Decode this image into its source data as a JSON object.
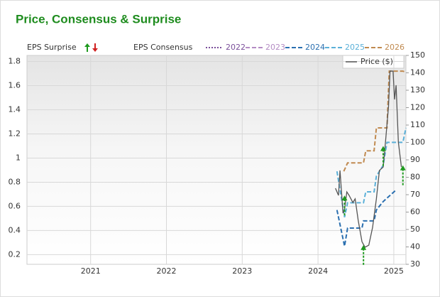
{
  "chart_data": {
    "type": "line",
    "title": "Price, Consensus & Surprise",
    "consensus_label": "EPS Consensus",
    "xlim": [
      2020.16,
      2025.16
    ],
    "xticks": [
      2021,
      2022,
      2023,
      2024,
      2025
    ],
    "ylim": [
      0.12,
      1.85
    ],
    "yticks": [
      0.2,
      0.4,
      0.6,
      0.8,
      1,
      1.2,
      1.4,
      1.6,
      1.8
    ],
    "y2lim": [
      30,
      150
    ],
    "y2ticks": [
      30,
      40,
      50,
      60,
      70,
      80,
      90,
      100,
      110,
      120,
      130,
      140,
      150
    ],
    "grid": true,
    "series": [
      {
        "name": "2022",
        "color": "#7a4f9a",
        "style": "dotted",
        "x": [],
        "values": []
      },
      {
        "name": "2023",
        "color": "#b48cc4",
        "style": "dashed",
        "x": [],
        "values": []
      },
      {
        "name": "2024",
        "color": "#2a6fb0",
        "style": "dashed",
        "x": [
          2024.25,
          2024.35,
          2024.39,
          2024.58,
          2024.6,
          2024.74,
          2024.77,
          2024.86,
          2025.02
        ],
        "values": [
          0.57,
          0.27,
          0.42,
          0.42,
          0.48,
          0.48,
          0.57,
          0.64,
          0.73
        ]
      },
      {
        "name": "2025",
        "color": "#5bb0d8",
        "style": "dashed",
        "x": [
          2024.25,
          2024.35,
          2024.39,
          2024.6,
          2024.63,
          2024.74,
          2024.77,
          2024.86,
          2024.91,
          2025.12,
          2025.16
        ],
        "values": [
          0.89,
          0.51,
          0.63,
          0.63,
          0.72,
          0.72,
          0.85,
          0.94,
          1.13,
          1.13,
          1.25
        ]
      },
      {
        "name": "2026",
        "color": "#c08a50",
        "style": "dashed",
        "x": [
          2024.34,
          2024.39,
          2024.6,
          2024.63,
          2024.74,
          2024.77,
          2024.91,
          2024.94,
          2025.12,
          2025.16
        ],
        "values": [
          0.89,
          0.96,
          0.96,
          1.06,
          1.06,
          1.25,
          1.25,
          1.72,
          1.72,
          1.71
        ]
      },
      {
        "name": "Price ($)",
        "color": "#555555",
        "style": "solid",
        "axis": "y2",
        "x": [
          2024.23,
          2024.27,
          2024.29,
          2024.33,
          2024.35,
          2024.38,
          2024.41,
          2024.46,
          2024.49,
          2024.53,
          2024.58,
          2024.62,
          2024.67,
          2024.72,
          2024.77,
          2024.81,
          2024.86,
          2024.89,
          2024.93,
          2024.95,
          2024.99,
          2025.01,
          2025.03,
          2025.06,
          2025.1
        ],
        "values": [
          73.7,
          69.6,
          83.9,
          59.4,
          61.4,
          71.6,
          69.6,
          65.5,
          67.6,
          55.3,
          43,
          39.8,
          41,
          51.2,
          67.6,
          83.9,
          85.9,
          100.2,
          120.6,
          141,
          141,
          124.7,
          132.9,
          100.2,
          85.9
        ]
      }
    ],
    "surprises": {
      "name": "EPS Surprise",
      "color": "#1f9a1f",
      "x": [
        2024.35,
        2024.6,
        2024.86,
        2025.12
      ],
      "values": [
        0.69,
        0.28,
        1.1,
        0.94
      ]
    }
  }
}
